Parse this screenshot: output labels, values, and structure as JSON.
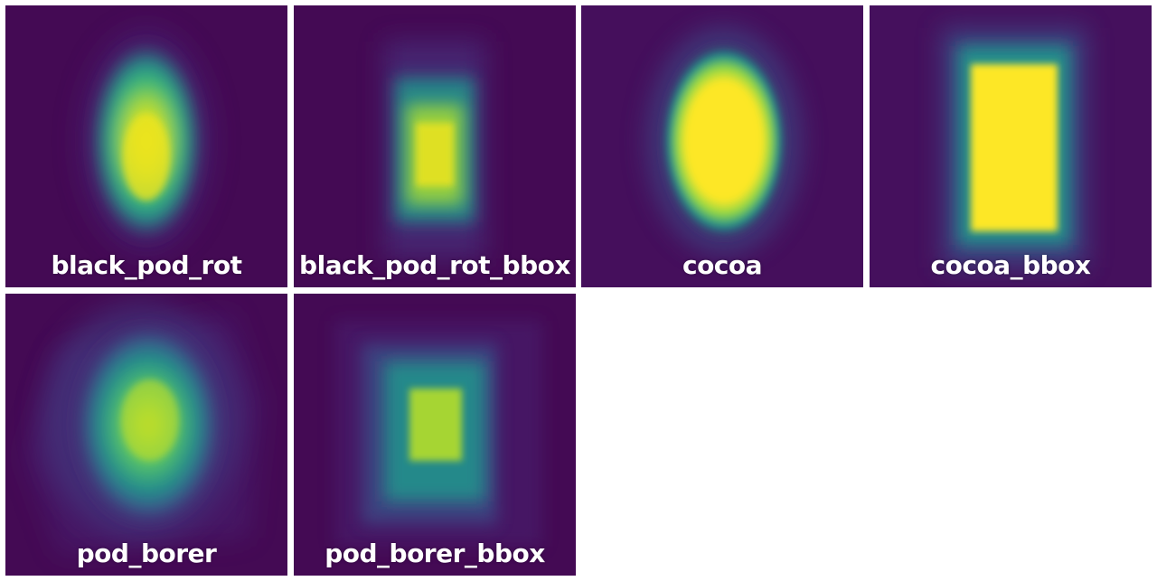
{
  "colors": {
    "background": "#ffffff",
    "viridis_low": "#440a54",
    "viridis_mid": "#21918c",
    "viridis_high": "#fde725"
  },
  "heatmaps": [
    {
      "label": "black_pod_rot",
      "shape": "ellipse",
      "intensity": "medium-high"
    },
    {
      "label": "black_pod_rot_bbox",
      "shape": "rectangle",
      "intensity": "medium"
    },
    {
      "label": "cocoa",
      "shape": "ellipse",
      "intensity": "high"
    },
    {
      "label": "cocoa_bbox",
      "shape": "rectangle",
      "intensity": "high"
    },
    {
      "label": "pod_borer",
      "shape": "irregular",
      "intensity": "medium"
    },
    {
      "label": "pod_borer_bbox",
      "shape": "irregular-rectangle",
      "intensity": "medium"
    }
  ]
}
